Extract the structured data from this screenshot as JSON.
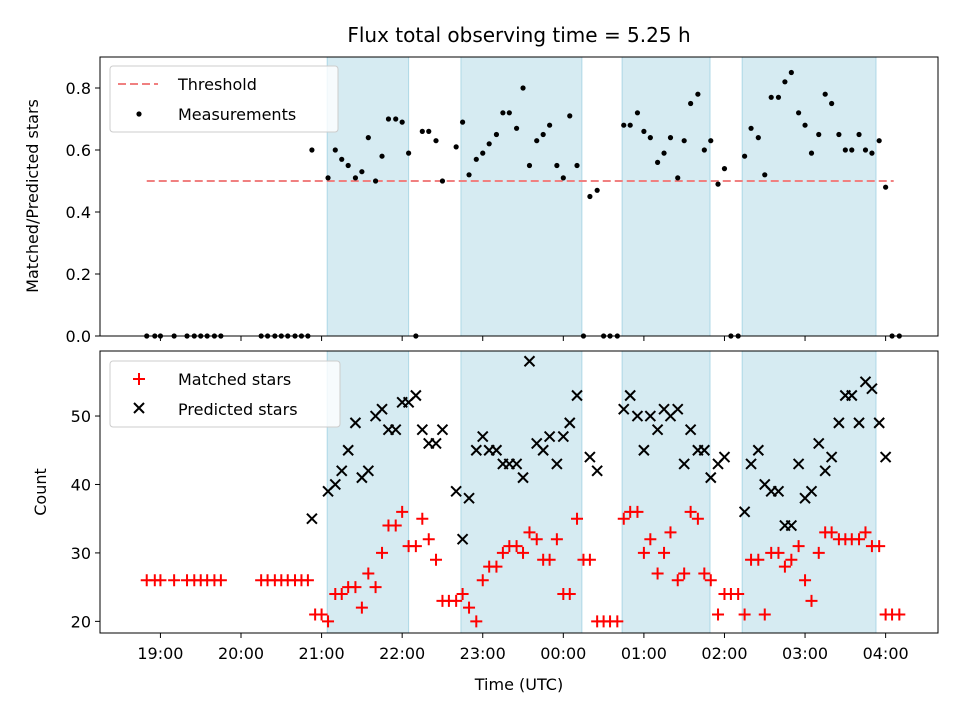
{
  "chart_data": {
    "title": "Flux total observing time = 5.25 h",
    "xlabel": "Time (UTC)",
    "x_range_hours": [
      18.25,
      28.65
    ],
    "x_ticks": [
      {
        "h": 19,
        "label": "19:00"
      },
      {
        "h": 20,
        "label": "20:00"
      },
      {
        "h": 21,
        "label": "21:00"
      },
      {
        "h": 22,
        "label": "22:00"
      },
      {
        "h": 23,
        "label": "23:00"
      },
      {
        "h": 24,
        "label": "00:00"
      },
      {
        "h": 25,
        "label": "01:00"
      },
      {
        "h": 26,
        "label": "02:00"
      },
      {
        "h": 27,
        "label": "03:00"
      },
      {
        "h": 28,
        "label": "04:00"
      }
    ],
    "shaded_intervals": [
      [
        21.07,
        22.08
      ],
      [
        22.73,
        24.23
      ],
      [
        24.73,
        25.82
      ],
      [
        26.22,
        27.88
      ]
    ],
    "panels": [
      {
        "type": "scatter",
        "ylabel": "Matched/Predicted stars",
        "ylim": [
          0,
          0.9
        ],
        "yticks": [
          0.0,
          0.2,
          0.4,
          0.6,
          0.8
        ],
        "legend": {
          "position": "top-left",
          "entries": [
            "Threshold",
            "Measurements"
          ]
        },
        "threshold": {
          "name": "Threshold",
          "value": 0.5,
          "x": [
            18.83,
            28.1
          ]
        },
        "series": [
          {
            "name": "Measurements",
            "x": [
              18.83,
              18.93,
              19.0,
              19.17,
              19.33,
              19.42,
              19.5,
              19.58,
              19.67,
              19.75,
              20.25,
              20.33,
              20.42,
              20.5,
              20.58,
              20.67,
              20.75,
              20.83,
              20.88,
              21.08,
              21.17,
              21.25,
              21.33,
              21.42,
              21.5,
              21.58,
              21.67,
              21.75,
              21.83,
              21.92,
              22.0,
              22.08,
              22.17,
              22.25,
              22.33,
              22.42,
              22.5,
              22.67,
              22.75,
              22.83,
              22.92,
              23.0,
              23.08,
              23.17,
              23.25,
              23.33,
              23.42,
              23.5,
              23.58,
              23.67,
              23.75,
              23.83,
              23.92,
              24.0,
              24.08,
              24.17,
              24.25,
              24.33,
              24.42,
              24.5,
              24.58,
              24.67,
              24.75,
              24.83,
              24.92,
              25.0,
              25.08,
              25.17,
              25.25,
              25.33,
              25.42,
              25.5,
              25.58,
              25.67,
              25.75,
              25.83,
              25.92,
              26.0,
              26.08,
              26.17,
              26.25,
              26.33,
              26.42,
              26.5,
              26.58,
              26.67,
              26.75,
              26.83,
              26.92,
              27.0,
              27.08,
              27.17,
              27.25,
              27.33,
              27.42,
              27.5,
              27.58,
              27.67,
              27.75,
              27.83,
              27.92,
              28.0,
              28.08,
              28.17
            ],
            "y": [
              0,
              0,
              0,
              0,
              0,
              0,
              0,
              0,
              0,
              0,
              0,
              0,
              0,
              0,
              0,
              0,
              0,
              0,
              0.6,
              0.51,
              0.6,
              0.57,
              0.55,
              0.51,
              0.53,
              0.64,
              0.5,
              0.58,
              0.7,
              0.7,
              0.69,
              0.59,
              0,
              0.66,
              0.66,
              0.63,
              0.5,
              0.61,
              0.69,
              0.52,
              0.57,
              0.59,
              0.62,
              0.65,
              0.72,
              0.72,
              0.67,
              0.8,
              0.55,
              0.63,
              0.65,
              0.68,
              0.55,
              0.51,
              0.71,
              0.55,
              0,
              0.45,
              0.47,
              0,
              0,
              0,
              0.68,
              0.68,
              0.72,
              0.66,
              0.64,
              0.56,
              0.59,
              0.64,
              0.51,
              0.63,
              0.75,
              0.78,
              0.6,
              0.63,
              0.49,
              0.54,
              0,
              0,
              0.58,
              0.67,
              0.64,
              0.52,
              0.77,
              0.77,
              0.82,
              0.85,
              0.72,
              0.68,
              0.59,
              0.65,
              0.78,
              0.75,
              0.65,
              0.6,
              0.6,
              0.65,
              0.6,
              0.59,
              0.63,
              0.48,
              0,
              0
            ]
          }
        ]
      },
      {
        "type": "scatter",
        "ylabel": "Count",
        "ylim": [
          18.3,
          59.5
        ],
        "yticks": [
          20,
          30,
          40,
          50
        ],
        "legend": {
          "position": "top-left",
          "entries": [
            "Matched stars",
            "Predicted stars"
          ]
        },
        "series": [
          {
            "name": "Matched stars",
            "marker": "plus",
            "x": [
              18.83,
              18.93,
              19.0,
              19.17,
              19.33,
              19.42,
              19.5,
              19.58,
              19.67,
              19.75,
              20.25,
              20.33,
              20.42,
              20.5,
              20.58,
              20.67,
              20.75,
              20.83,
              20.92,
              21.0,
              21.08,
              21.17,
              21.25,
              21.33,
              21.42,
              21.5,
              21.58,
              21.67,
              21.75,
              21.83,
              21.92,
              22.0,
              22.08,
              22.17,
              22.25,
              22.33,
              22.42,
              22.5,
              22.58,
              22.67,
              22.75,
              22.83,
              22.92,
              23.0,
              23.08,
              23.17,
              23.25,
              23.33,
              23.42,
              23.5,
              23.58,
              23.67,
              23.75,
              23.83,
              23.92,
              24.0,
              24.08,
              24.17,
              24.25,
              24.33,
              24.42,
              24.5,
              24.58,
              24.67,
              24.75,
              24.83,
              24.92,
              25.0,
              25.08,
              25.17,
              25.25,
              25.33,
              25.42,
              25.5,
              25.58,
              25.67,
              25.75,
              25.83,
              25.92,
              26.0,
              26.08,
              26.17,
              26.25,
              26.33,
              26.42,
              26.5,
              26.58,
              26.67,
              26.75,
              26.83,
              26.92,
              27.0,
              27.08,
              27.17,
              27.25,
              27.33,
              27.42,
              27.5,
              27.58,
              27.67,
              27.75,
              27.83,
              27.92,
              28.0,
              28.08,
              28.17
            ],
            "y": [
              26,
              26,
              26,
              26,
              26,
              26,
              26,
              26,
              26,
              26,
              26,
              26,
              26,
              26,
              26,
              26,
              26,
              26,
              21,
              21,
              20,
              24,
              24,
              25,
              25,
              22,
              27,
              25,
              30,
              34,
              34,
              36,
              31,
              31,
              35,
              32,
              29,
              23,
              23,
              23,
              24,
              22,
              20,
              26,
              28,
              28,
              30,
              31,
              31,
              30,
              33,
              32,
              29,
              29,
              32,
              24,
              24,
              35,
              29,
              29,
              20,
              20,
              20,
              20,
              35,
              36,
              36,
              30,
              32,
              27,
              30,
              33,
              26,
              27,
              36,
              35,
              27,
              26,
              21,
              24,
              24,
              24,
              21,
              29,
              29,
              21,
              30,
              30,
              28,
              29,
              31,
              26,
              23,
              30,
              33,
              33,
              32,
              32,
              32,
              32,
              33,
              31,
              31,
              21,
              21,
              21
            ]
          },
          {
            "name": "Predicted stars",
            "marker": "x",
            "x": [
              20.88,
              21.08,
              21.17,
              21.25,
              21.33,
              21.42,
              21.5,
              21.58,
              21.67,
              21.75,
              21.83,
              21.92,
              22.0,
              22.08,
              22.17,
              22.25,
              22.33,
              22.42,
              22.5,
              22.67,
              22.75,
              22.83,
              22.92,
              23.0,
              23.08,
              23.17,
              23.25,
              23.33,
              23.42,
              23.5,
              23.58,
              23.67,
              23.75,
              23.83,
              23.92,
              24.0,
              24.08,
              24.17,
              24.33,
              24.42,
              24.75,
              24.83,
              24.92,
              25.0,
              25.08,
              25.17,
              25.25,
              25.33,
              25.42,
              25.5,
              25.58,
              25.67,
              25.75,
              25.83,
              25.92,
              26.0,
              26.25,
              26.33,
              26.42,
              26.5,
              26.58,
              26.67,
              26.75,
              26.83,
              26.92,
              27.0,
              27.08,
              27.17,
              27.25,
              27.33,
              27.42,
              27.5,
              27.58,
              27.67,
              27.75,
              27.83,
              27.92,
              28.0
            ],
            "y": [
              35,
              39,
              40,
              42,
              45,
              49,
              41,
              42,
              50,
              51,
              48,
              48,
              52,
              52,
              53,
              48,
              46,
              46,
              48,
              39,
              32,
              38,
              45,
              47,
              45,
              45,
              43,
              43,
              43,
              41,
              58,
              46,
              45,
              47,
              43,
              47,
              49,
              53,
              44,
              42,
              51,
              53,
              50,
              45,
              50,
              48,
              51,
              50,
              51,
              43,
              48,
              45,
              45,
              41,
              43,
              44,
              36,
              43,
              45,
              40,
              39,
              39,
              34,
              34,
              43,
              38,
              39,
              46,
              42,
              44,
              49,
              53,
              53,
              49,
              55,
              54,
              49,
              44
            ]
          }
        ]
      }
    ]
  }
}
